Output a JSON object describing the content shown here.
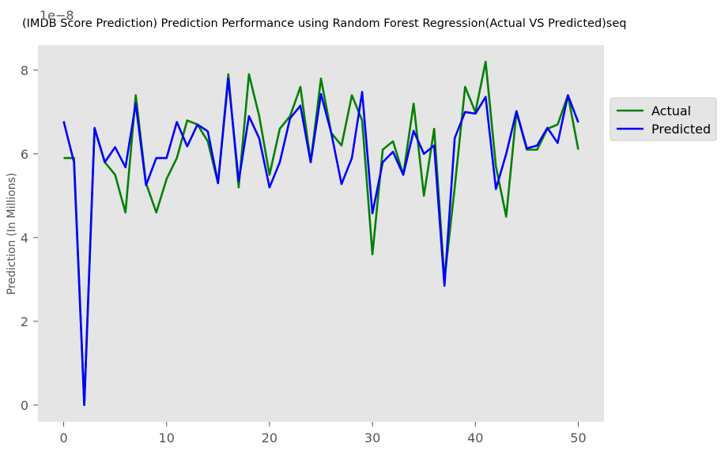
{
  "chart_data": {
    "type": "line",
    "title": "(IMDB Score Prediction) Prediction Performance using Random Forest Regression(Actual VS Predicted)seq",
    "xlabel": "",
    "ylabel": "Prediction (In Millions)",
    "y_offset_text": "1e−8",
    "xlim": [
      -2.5,
      52.5
    ],
    "ylim": [
      -0.4,
      8.6
    ],
    "x_ticks": [
      0,
      10,
      20,
      30,
      40,
      50
    ],
    "y_ticks": [
      0,
      2,
      4,
      6,
      8
    ],
    "grid": false,
    "legend_position": "right",
    "background": "#e5e5e5",
    "x": [
      0,
      1,
      2,
      3,
      4,
      5,
      6,
      7,
      8,
      9,
      10,
      11,
      12,
      13,
      14,
      15,
      16,
      17,
      18,
      19,
      20,
      21,
      22,
      23,
      24,
      25,
      26,
      27,
      28,
      29,
      30,
      31,
      32,
      33,
      34,
      35,
      36,
      37,
      38,
      39,
      40,
      41,
      42,
      43,
      44,
      45,
      46,
      47,
      48,
      49,
      50
    ],
    "series": [
      {
        "name": "Actual",
        "color": "#008000",
        "values": [
          5.9,
          5.9,
          0.0,
          6.6,
          5.8,
          5.5,
          4.6,
          7.4,
          5.3,
          4.6,
          5.4,
          5.9,
          6.8,
          6.7,
          6.3,
          5.3,
          7.9,
          5.2,
          7.9,
          6.9,
          5.5,
          6.6,
          6.9,
          7.6,
          5.8,
          7.8,
          6.5,
          6.2,
          7.4,
          6.8,
          3.6,
          6.1,
          6.3,
          5.5,
          7.2,
          5.0,
          6.6,
          3.0,
          5.2,
          7.6,
          7.0,
          8.2,
          5.7,
          4.5,
          7.0,
          6.1,
          6.1,
          6.6,
          6.7,
          7.4,
          6.1
        ]
      },
      {
        "name": "Predicted",
        "color": "#0000ff",
        "values": [
          6.78,
          5.8,
          0.0,
          6.62,
          5.8,
          6.16,
          5.68,
          7.2,
          5.25,
          5.9,
          5.9,
          6.76,
          6.18,
          6.7,
          6.54,
          5.3,
          7.8,
          5.35,
          6.9,
          6.37,
          5.2,
          5.8,
          6.85,
          7.15,
          5.8,
          7.43,
          6.5,
          5.28,
          5.9,
          7.48,
          4.58,
          5.8,
          6.05,
          5.5,
          6.55,
          6.0,
          6.2,
          2.85,
          6.38,
          7.0,
          6.96,
          7.36,
          5.16,
          6.0,
          7.02,
          6.13,
          6.2,
          6.62,
          6.26,
          7.4,
          6.75
        ]
      }
    ]
  }
}
